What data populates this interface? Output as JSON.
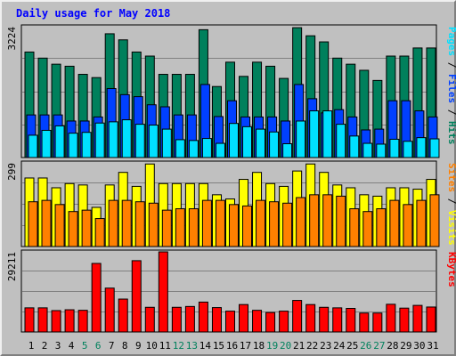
{
  "title": "Daily usage for May 2018",
  "colors": {
    "background": "#c0c0c0",
    "title": "#0000ff",
    "hits": "#00805c",
    "files": "#0040ff",
    "pages": "#00e0ff",
    "visits": "#ffff00",
    "sites": "#ff8000",
    "kbytes": "#ff0000",
    "weekday_label": "#000000",
    "weekend_label": "#00805c"
  },
  "chart_data": [
    {
      "type": "bar",
      "panel": "top",
      "ymax_label": "3224",
      "ylim": [
        0,
        3224
      ],
      "grid": true,
      "side_labels": [
        {
          "text": "Pages",
          "color": "#00e0ff"
        },
        {
          "text": " / ",
          "color": "#000000"
        },
        {
          "text": "Files",
          "color": "#0040ff"
        },
        {
          "text": " / ",
          "color": "#000000"
        },
        {
          "text": "Hits",
          "color": "#00805c"
        }
      ],
      "categories": [
        "1",
        "2",
        "3",
        "4",
        "5",
        "6",
        "7",
        "8",
        "9",
        "10",
        "11",
        "12",
        "13",
        "14",
        "15",
        "16",
        "17",
        "18",
        "19",
        "20",
        "21",
        "22",
        "23",
        "24",
        "25",
        "26",
        "27",
        "28",
        "29",
        "30",
        "31"
      ],
      "series": [
        {
          "name": "Hits",
          "values": [
            2600,
            2450,
            2300,
            2250,
            2050,
            1970,
            3050,
            2900,
            2600,
            2500,
            2050,
            2050,
            2050,
            3150,
            1750,
            2350,
            2000,
            2350,
            2250,
            1950,
            3200,
            3000,
            2850,
            2450,
            2300,
            2150,
            1900,
            2500,
            2500,
            2700,
            2700
          ]
        },
        {
          "name": "Files",
          "values": [
            1050,
            1050,
            1050,
            900,
            900,
            1000,
            1700,
            1550,
            1500,
            1300,
            1250,
            1050,
            1050,
            1800,
            1010,
            1400,
            1000,
            1000,
            1000,
            900,
            1800,
            1450,
            1100,
            1180,
            1000,
            680,
            700,
            1400,
            1400,
            1150,
            1000
          ]
        },
        {
          "name": "Pages",
          "values": [
            550,
            670,
            780,
            600,
            620,
            850,
            880,
            930,
            820,
            800,
            700,
            440,
            420,
            470,
            350,
            840,
            760,
            700,
            630,
            340,
            900,
            1150,
            1150,
            820,
            530,
            350,
            330,
            450,
            400,
            490,
            460
          ]
        }
      ]
    },
    {
      "type": "bar",
      "panel": "middle",
      "ymax_label": "299",
      "ylim": [
        0,
        299
      ],
      "grid": true,
      "side_labels": [
        {
          "text": "Sites",
          "color": "#ff8000"
        },
        {
          "text": " / ",
          "color": "#000000"
        },
        {
          "text": "Visits",
          "color": "#ffff00"
        }
      ],
      "categories": [
        "1",
        "2",
        "3",
        "4",
        "5",
        "6",
        "7",
        "8",
        "9",
        "10",
        "11",
        "12",
        "13",
        "14",
        "15",
        "16",
        "17",
        "18",
        "19",
        "20",
        "21",
        "22",
        "23",
        "24",
        "25",
        "26",
        "27",
        "28",
        "29",
        "30",
        "31"
      ],
      "series": [
        {
          "name": "Visits",
          "values": [
            245,
            245,
            210,
            225,
            220,
            140,
            220,
            265,
            215,
            295,
            225,
            225,
            225,
            225,
            185,
            170,
            240,
            265,
            225,
            215,
            270,
            295,
            265,
            220,
            210,
            185,
            180,
            210,
            210,
            205,
            240
          ]
        },
        {
          "name": "Sites",
          "values": [
            160,
            165,
            150,
            125,
            130,
            100,
            165,
            165,
            160,
            155,
            130,
            135,
            135,
            165,
            165,
            150,
            145,
            165,
            160,
            155,
            175,
            185,
            185,
            180,
            135,
            125,
            135,
            165,
            150,
            165,
            185
          ]
        }
      ]
    },
    {
      "type": "bar",
      "panel": "bottom",
      "ymax_label": "29211",
      "ylim": [
        0,
        29211
      ],
      "grid": true,
      "side_labels": [
        {
          "text": "KBytes",
          "color": "#ff0000"
        }
      ],
      "categories": [
        "1",
        "2",
        "3",
        "4",
        "5",
        "6",
        "7",
        "8",
        "9",
        "10",
        "11",
        "12",
        "13",
        "14",
        "15",
        "16",
        "17",
        "18",
        "19",
        "20",
        "21",
        "22",
        "23",
        "24",
        "25",
        "26",
        "27",
        "28",
        "29",
        "30",
        "31"
      ],
      "series": [
        {
          "name": "KBytes",
          "values": [
            8800,
            8800,
            7800,
            8100,
            7900,
            25000,
            16000,
            12000,
            26000,
            9000,
            29211,
            9000,
            9300,
            10900,
            8900,
            7600,
            10000,
            7900,
            7100,
            7600,
            11500,
            10000,
            9000,
            8800,
            8600,
            6900,
            6900,
            10100,
            8700,
            9700,
            9100
          ]
        }
      ]
    }
  ],
  "x_axis": {
    "labels": [
      "1",
      "2",
      "3",
      "4",
      "5",
      "6",
      "7",
      "8",
      "9",
      "10",
      "11",
      "12",
      "13",
      "14",
      "15",
      "16",
      "17",
      "18",
      "19",
      "20",
      "21",
      "22",
      "23",
      "24",
      "25",
      "26",
      "27",
      "28",
      "29",
      "30",
      "31"
    ],
    "weekend_days": [
      "5",
      "6",
      "12",
      "13",
      "19",
      "20",
      "26",
      "27"
    ]
  }
}
